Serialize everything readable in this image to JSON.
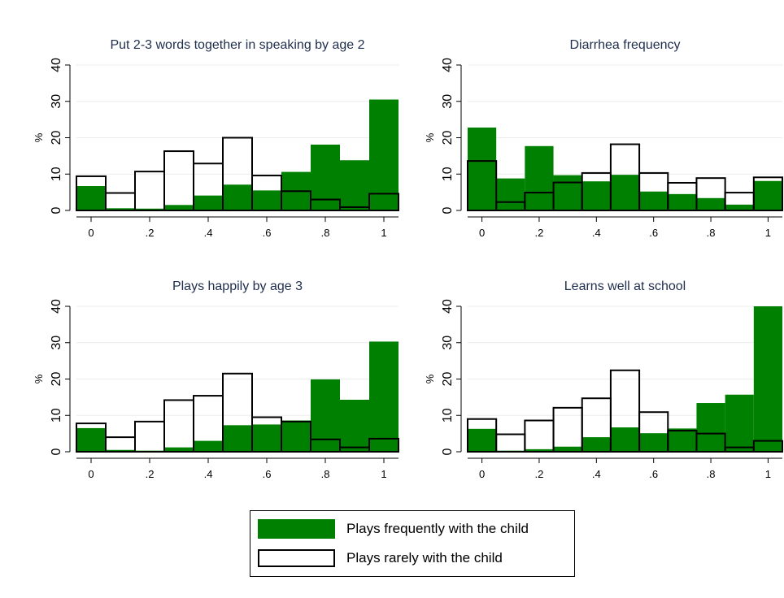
{
  "colors": {
    "frequent": "#008000",
    "rare_stroke": "#000000",
    "title": "#1f2d4d",
    "grid": "#ececec",
    "axis": "#000000"
  },
  "legend": {
    "placement": "bottom-center",
    "items": [
      {
        "label": "Plays frequently with the child",
        "style": "filled-green"
      },
      {
        "label": "Plays rarely with the child",
        "style": "hollow-black"
      }
    ]
  },
  "chart_data": [
    {
      "type": "bar",
      "title": "Put 2-3 words together in speaking by age 2",
      "xlabel": "",
      "ylabel": "%",
      "ylim": [
        0,
        40
      ],
      "xlim": [
        -0.05,
        1.05
      ],
      "yticks": [
        0,
        10,
        20,
        30,
        40
      ],
      "yticklabels": [
        "0",
        "10",
        "20",
        "30",
        "40"
      ],
      "xticks": [
        0,
        0.2,
        0.4,
        0.6,
        0.8,
        1
      ],
      "xticklabels": [
        "0",
        ".2",
        ".4",
        ".6",
        ".8",
        "1"
      ],
      "grid": true,
      "bin_width": 0.1,
      "x": [
        0,
        0.1,
        0.2,
        0.3,
        0.4,
        0.5,
        0.6,
        0.7,
        0.8,
        0.9,
        1.0
      ],
      "series": [
        {
          "name": "Plays frequently with the child",
          "style": "filled",
          "values": [
            6.7,
            0.6,
            0.5,
            1.5,
            4.1,
            7.1,
            5.5,
            10.6,
            18.1,
            13.8,
            30.5
          ]
        },
        {
          "name": "Plays rarely with the child",
          "style": "hollow",
          "values": [
            9.4,
            4.8,
            10.7,
            16.3,
            12.9,
            20.0,
            9.6,
            5.3,
            3.0,
            0.9,
            4.6
          ]
        }
      ]
    },
    {
      "type": "bar",
      "title": "Diarrhea frequency",
      "xlabel": "",
      "ylabel": "%",
      "ylim": [
        0,
        40
      ],
      "xlim": [
        -0.05,
        1.05
      ],
      "yticks": [
        0,
        10,
        20,
        30,
        40
      ],
      "yticklabels": [
        "0",
        "10",
        "20",
        "30",
        "40"
      ],
      "xticks": [
        0,
        0.2,
        0.4,
        0.6,
        0.8,
        1
      ],
      "xticklabels": [
        "0",
        ".2",
        ".4",
        ".6",
        ".8",
        "1"
      ],
      "grid": true,
      "bin_width": 0.1,
      "x": [
        0,
        0.1,
        0.2,
        0.3,
        0.4,
        0.5,
        0.6,
        0.7,
        0.8,
        0.9,
        1.0
      ],
      "series": [
        {
          "name": "Plays frequently with the child",
          "style": "filled",
          "values": [
            22.8,
            8.8,
            17.7,
            9.7,
            8.0,
            9.8,
            5.2,
            4.5,
            3.4,
            1.6,
            8.1
          ]
        },
        {
          "name": "Plays rarely with the child",
          "style": "hollow",
          "values": [
            13.6,
            2.3,
            4.9,
            7.7,
            10.3,
            18.2,
            10.3,
            7.6,
            8.9,
            4.9,
            9.1
          ]
        }
      ]
    },
    {
      "type": "bar",
      "title": "Plays happily by age 3",
      "xlabel": "",
      "ylabel": "%",
      "ylim": [
        0,
        40
      ],
      "xlim": [
        -0.05,
        1.05
      ],
      "yticks": [
        0,
        10,
        20,
        30,
        40
      ],
      "yticklabels": [
        "0",
        "10",
        "20",
        "30",
        "40"
      ],
      "xticks": [
        0,
        0.2,
        0.4,
        0.6,
        0.8,
        1
      ],
      "xticklabels": [
        "0",
        ".2",
        ".4",
        ".6",
        ".8",
        "1"
      ],
      "grid": true,
      "bin_width": 0.1,
      "x": [
        0,
        0.1,
        0.2,
        0.3,
        0.4,
        0.5,
        0.6,
        0.7,
        0.8,
        0.9,
        1.0
      ],
      "series": [
        {
          "name": "Plays frequently with the child",
          "style": "filled",
          "values": [
            6.5,
            0.5,
            0.3,
            1.2,
            3.0,
            7.3,
            7.5,
            8.6,
            19.9,
            14.3,
            30.3
          ]
        },
        {
          "name": "Plays rarely with the child",
          "style": "hollow",
          "values": [
            7.8,
            4.0,
            8.3,
            14.2,
            15.4,
            21.5,
            9.5,
            8.3,
            3.4,
            1.2,
            3.6
          ]
        }
      ]
    },
    {
      "type": "bar",
      "title": "Learns well at school",
      "xlabel": "",
      "ylabel": "%",
      "ylim": [
        0,
        40
      ],
      "xlim": [
        -0.05,
        1.05
      ],
      "yticks": [
        0,
        10,
        20,
        30,
        40
      ],
      "yticklabels": [
        "0",
        "10",
        "20",
        "30",
        "40"
      ],
      "xticks": [
        0,
        0.2,
        0.4,
        0.6,
        0.8,
        1
      ],
      "xticklabels": [
        "0",
        ".2",
        ".4",
        ".6",
        ".8",
        "1"
      ],
      "grid": true,
      "bin_width": 0.1,
      "x": [
        0,
        0.1,
        0.2,
        0.3,
        0.4,
        0.5,
        0.6,
        0.7,
        0.8,
        0.9,
        1.0
      ],
      "series": [
        {
          "name": "Plays frequently with the child",
          "style": "filled",
          "values": [
            6.3,
            0.3,
            0.7,
            1.4,
            4.0,
            6.7,
            5.1,
            6.4,
            13.4,
            15.7,
            40.0
          ]
        },
        {
          "name": "Plays rarely with the child",
          "style": "hollow",
          "values": [
            9.0,
            4.8,
            8.6,
            12.1,
            14.7,
            22.4,
            10.9,
            5.8,
            5.0,
            1.2,
            3.0
          ]
        }
      ]
    }
  ]
}
